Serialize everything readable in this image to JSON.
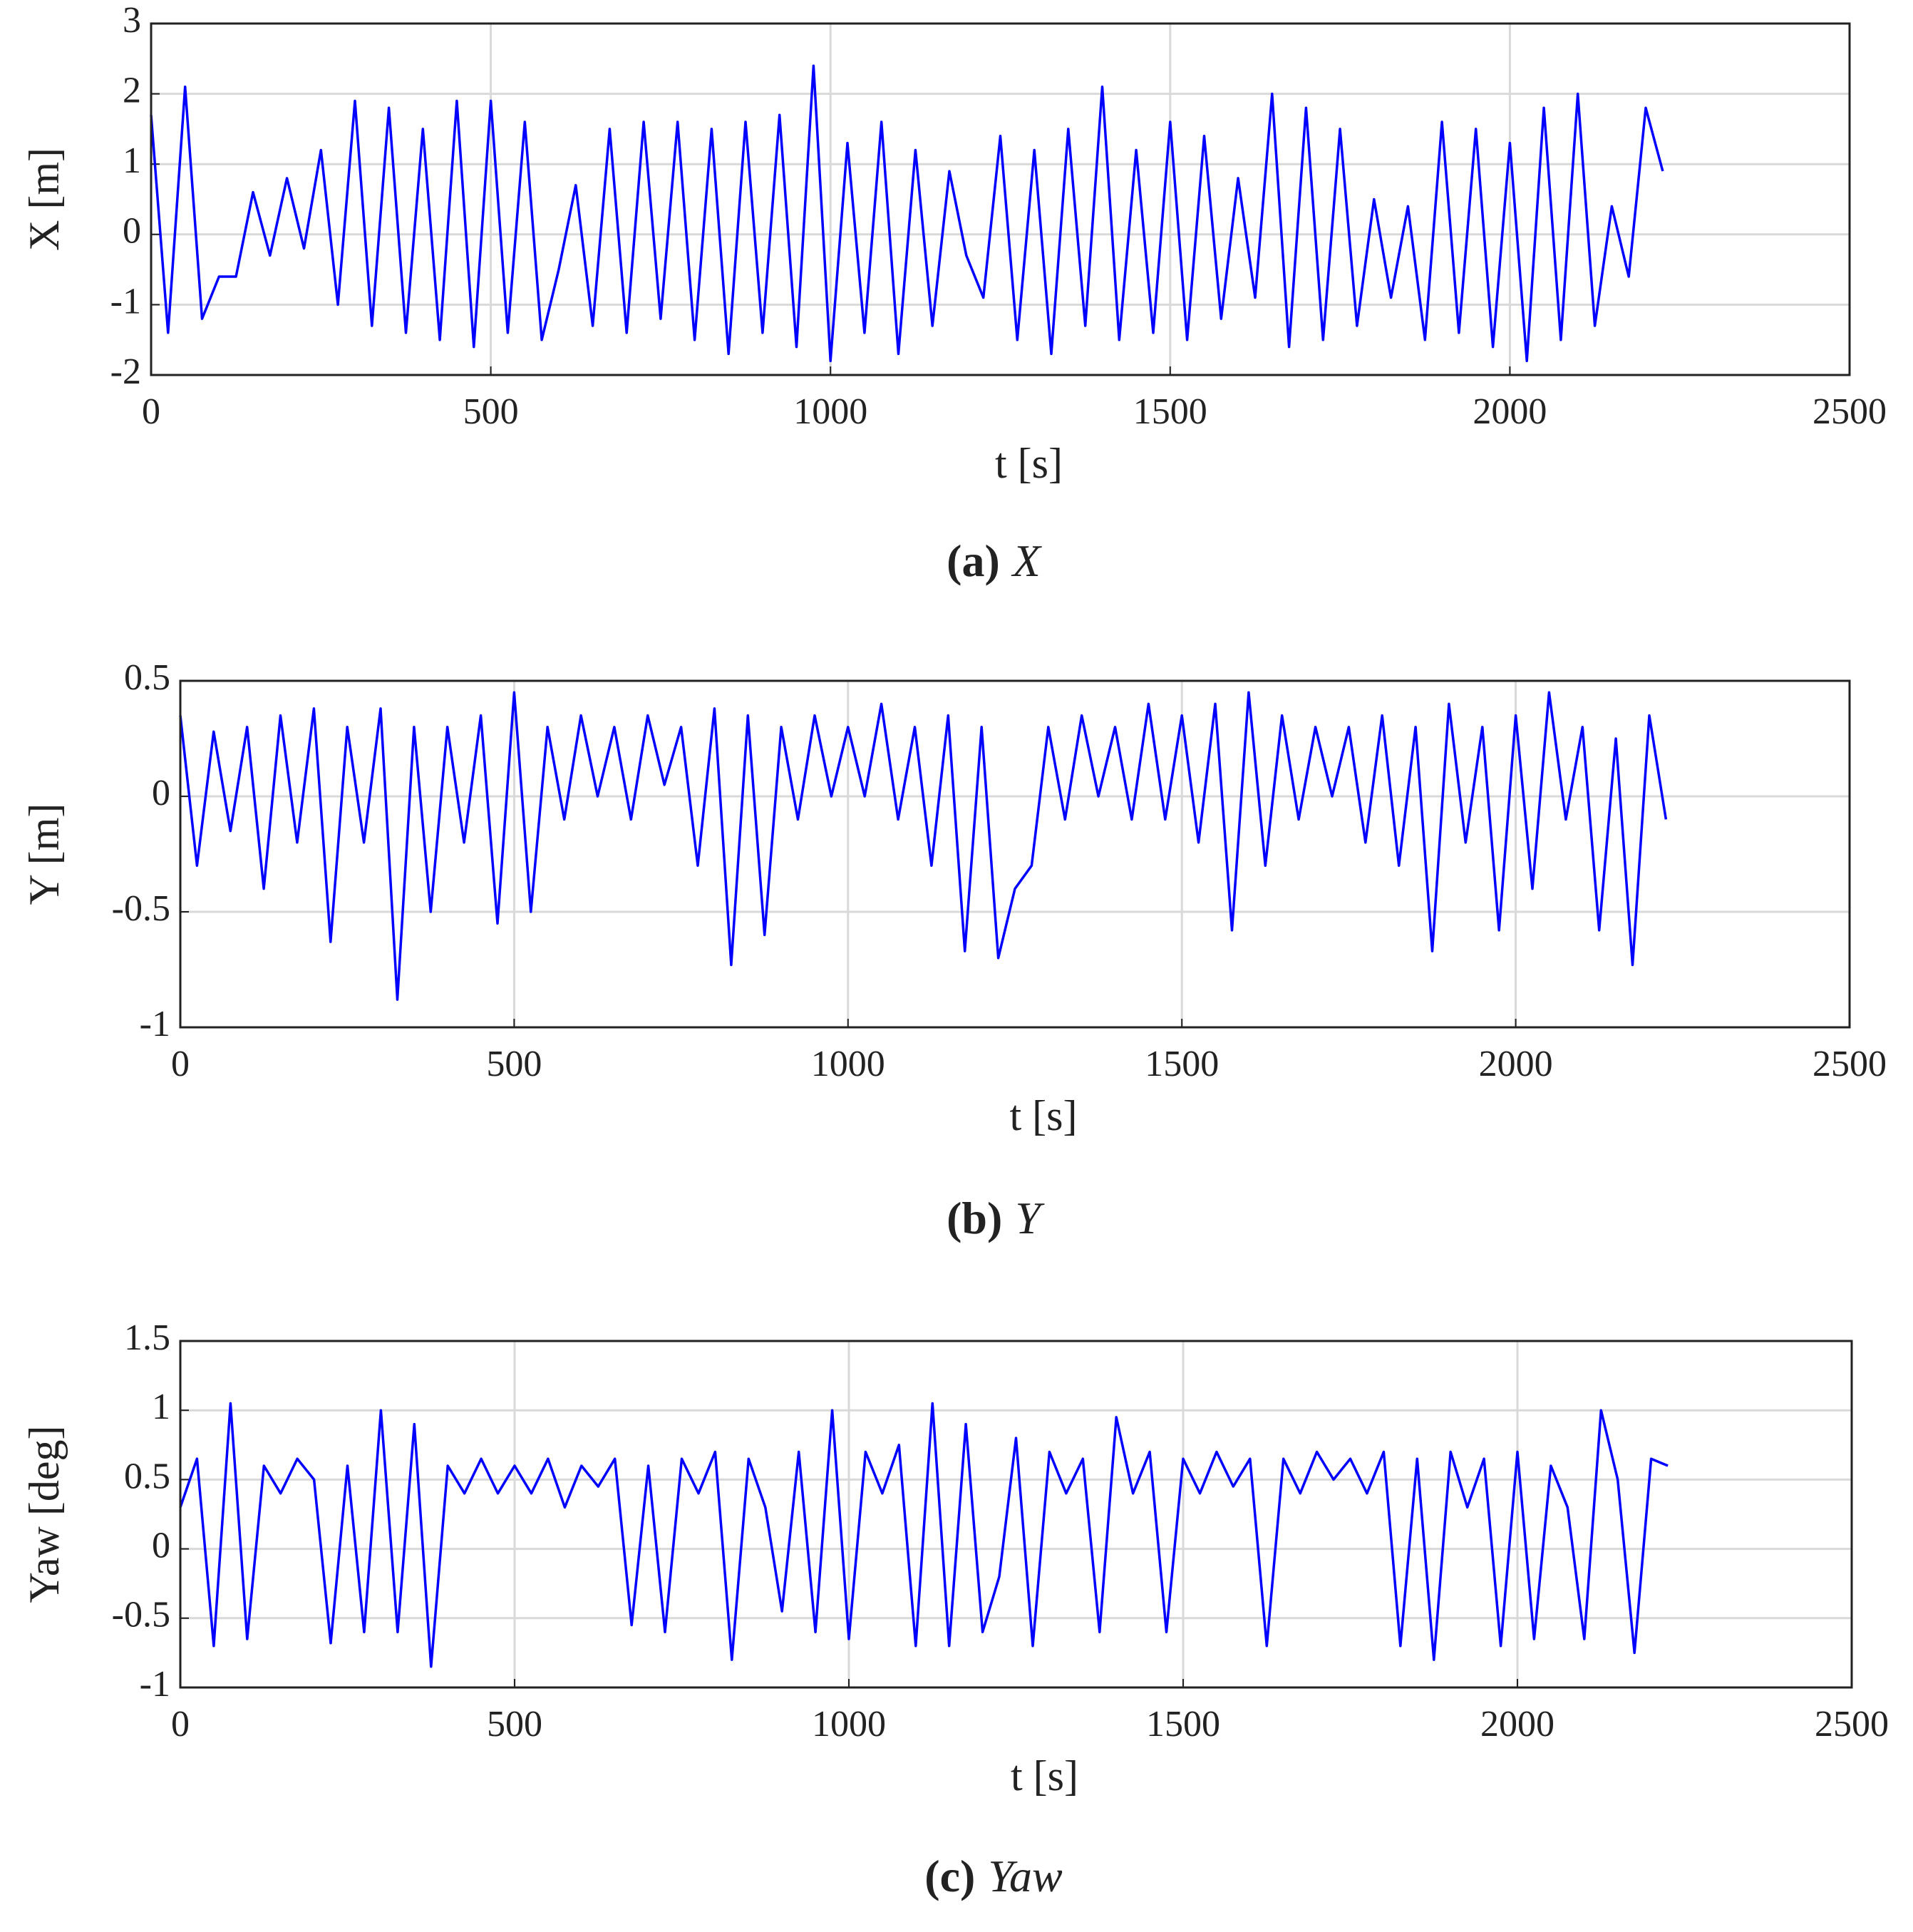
{
  "chart_data": [
    {
      "type": "line",
      "xlabel": "t [s]",
      "ylabel": "X [m]",
      "caption_label": "(a)",
      "caption_text": "X",
      "x": [
        0,
        25,
        50,
        75,
        100,
        125,
        150,
        175,
        200,
        225,
        250,
        275,
        300,
        325,
        350,
        375,
        400,
        425,
        450,
        475,
        500,
        525,
        550,
        575,
        600,
        625,
        650,
        675,
        700,
        725,
        750,
        775,
        800,
        825,
        850,
        875,
        900,
        925,
        950,
        975,
        1000,
        1025,
        1050,
        1075,
        1100,
        1125,
        1150,
        1175,
        1200,
        1225,
        1250,
        1275,
        1300,
        1325,
        1350,
        1375,
        1400,
        1425,
        1450,
        1475,
        1500,
        1525,
        1550,
        1575,
        1600,
        1625,
        1650,
        1675,
        1700,
        1725,
        1750,
        1775,
        1800,
        1825,
        1850,
        1875,
        1900,
        1925,
        1950,
        1975,
        2000,
        2025,
        2050,
        2075,
        2100,
        2125,
        2150,
        2175,
        2200,
        2225
      ],
      "series": [
        {
          "color": "#0000ff",
          "values": [
            1.7,
            -1.4,
            2.1,
            -1.2,
            -0.6,
            -0.6,
            0.6,
            -0.3,
            0.8,
            -0.2,
            1.2,
            -1.0,
            1.9,
            -1.3,
            1.8,
            -1.4,
            1.5,
            -1.5,
            1.9,
            -1.6,
            1.9,
            -1.4,
            1.6,
            -1.5,
            -0.5,
            0.7,
            -1.3,
            1.5,
            -1.4,
            1.6,
            -1.2,
            1.6,
            -1.5,
            1.5,
            -1.7,
            1.6,
            -1.4,
            1.7,
            -1.6,
            2.4,
            -1.8,
            1.3,
            -1.4,
            1.6,
            -1.7,
            1.2,
            -1.3,
            0.9,
            -0.3,
            -0.9,
            1.4,
            -1.5,
            1.2,
            -1.7,
            1.5,
            -1.3,
            2.1,
            -1.5,
            1.2,
            -1.4,
            1.6,
            -1.5,
            1.4,
            -1.2,
            0.8,
            -0.9,
            2.0,
            -1.6,
            1.8,
            -1.5,
            1.5,
            -1.3,
            0.5,
            -0.9,
            0.4,
            -1.5,
            1.6,
            -1.4,
            1.5,
            -1.6,
            1.3,
            -1.8,
            1.8,
            -1.5,
            2.0,
            -1.3,
            0.4,
            -0.6,
            1.8,
            0.9
          ]
        }
      ],
      "xlim": [
        0,
        2500
      ],
      "xticks": [
        0,
        500,
        1000,
        1500,
        2000,
        2500
      ],
      "ylim": [
        -2,
        3
      ],
      "yticks": [
        -2,
        -1,
        0,
        1,
        2,
        3
      ],
      "grid": true
    },
    {
      "type": "line",
      "xlabel": "t [s]",
      "ylabel": "Y [m]",
      "caption_label": "(b)",
      "caption_text": "Y",
      "x": [
        0,
        25,
        50,
        75,
        100,
        125,
        150,
        175,
        200,
        225,
        250,
        275,
        300,
        325,
        350,
        375,
        400,
        425,
        450,
        475,
        500,
        525,
        550,
        575,
        600,
        625,
        650,
        675,
        700,
        725,
        750,
        775,
        800,
        825,
        850,
        875,
        900,
        925,
        950,
        975,
        1000,
        1025,
        1050,
        1075,
        1100,
        1125,
        1150,
        1175,
        1200,
        1225,
        1250,
        1275,
        1300,
        1325,
        1350,
        1375,
        1400,
        1425,
        1450,
        1475,
        1500,
        1525,
        1550,
        1575,
        1600,
        1625,
        1650,
        1675,
        1700,
        1725,
        1750,
        1775,
        1800,
        1825,
        1850,
        1875,
        1900,
        1925,
        1950,
        1975,
        2000,
        2025,
        2050,
        2075,
        2100,
        2125,
        2150,
        2175,
        2200,
        2225
      ],
      "series": [
        {
          "color": "#0000ff",
          "values": [
            0.35,
            -0.3,
            0.28,
            -0.15,
            0.3,
            -0.4,
            0.35,
            -0.2,
            0.38,
            -0.63,
            0.3,
            -0.2,
            0.38,
            -0.88,
            0.3,
            -0.5,
            0.3,
            -0.2,
            0.35,
            -0.55,
            0.45,
            -0.5,
            0.3,
            -0.1,
            0.35,
            0.0,
            0.3,
            -0.1,
            0.35,
            0.05,
            0.3,
            -0.3,
            0.38,
            -0.73,
            0.35,
            -0.6,
            0.3,
            -0.1,
            0.35,
            0.0,
            0.3,
            0.0,
            0.4,
            -0.1,
            0.3,
            -0.3,
            0.35,
            -0.67,
            0.3,
            -0.7,
            -0.4,
            -0.3,
            0.3,
            -0.1,
            0.35,
            0.0,
            0.3,
            -0.1,
            0.4,
            -0.1,
            0.35,
            -0.2,
            0.4,
            -0.58,
            0.45,
            -0.3,
            0.35,
            -0.1,
            0.3,
            0.0,
            0.3,
            -0.2,
            0.35,
            -0.3,
            0.3,
            -0.67,
            0.4,
            -0.2,
            0.3,
            -0.58,
            0.35,
            -0.4,
            0.45,
            -0.1,
            0.3,
            -0.58,
            0.25,
            -0.73,
            0.35,
            -0.1
          ]
        }
      ],
      "xlim": [
        0,
        2500
      ],
      "xticks": [
        0,
        500,
        1000,
        1500,
        2000,
        2500
      ],
      "ylim": [
        -1,
        0.5
      ],
      "yticks": [
        -1,
        -0.5,
        0,
        0.5
      ],
      "grid": true
    },
    {
      "type": "line",
      "xlabel": "t [s]",
      "ylabel": "Yaw [deg]",
      "caption_label": "(c)",
      "caption_text": "Yaw",
      "x": [
        0,
        25,
        50,
        75,
        100,
        125,
        150,
        175,
        200,
        225,
        250,
        275,
        300,
        325,
        350,
        375,
        400,
        425,
        450,
        475,
        500,
        525,
        550,
        575,
        600,
        625,
        650,
        675,
        700,
        725,
        750,
        775,
        800,
        825,
        850,
        875,
        900,
        925,
        950,
        975,
        1000,
        1025,
        1050,
        1075,
        1100,
        1125,
        1150,
        1175,
        1200,
        1225,
        1250,
        1275,
        1300,
        1325,
        1350,
        1375,
        1400,
        1425,
        1450,
        1475,
        1500,
        1525,
        1550,
        1575,
        1600,
        1625,
        1650,
        1675,
        1700,
        1725,
        1750,
        1775,
        1800,
        1825,
        1850,
        1875,
        1900,
        1925,
        1950,
        1975,
        2000,
        2025,
        2050,
        2075,
        2100,
        2125,
        2150,
        2175,
        2200,
        2225
      ],
      "series": [
        {
          "color": "#0000ff",
          "values": [
            0.3,
            0.65,
            -0.7,
            1.05,
            -0.65,
            0.6,
            0.4,
            0.65,
            0.5,
            -0.68,
            0.6,
            -0.6,
            1.0,
            -0.6,
            0.9,
            -0.85,
            0.6,
            0.4,
            0.65,
            0.4,
            0.6,
            0.4,
            0.65,
            0.3,
            0.6,
            0.45,
            0.65,
            -0.55,
            0.6,
            -0.6,
            0.65,
            0.4,
            0.7,
            -0.8,
            0.65,
            0.3,
            -0.45,
            0.7,
            -0.6,
            1.0,
            -0.65,
            0.7,
            0.4,
            0.75,
            -0.7,
            1.05,
            -0.7,
            0.9,
            -0.6,
            -0.2,
            0.8,
            -0.7,
            0.7,
            0.4,
            0.65,
            -0.6,
            0.95,
            0.4,
            0.7,
            -0.6,
            0.65,
            0.4,
            0.7,
            0.45,
            0.65,
            -0.7,
            0.65,
            0.4,
            0.7,
            0.5,
            0.65,
            0.4,
            0.7,
            -0.7,
            0.65,
            -0.8,
            0.7,
            0.3,
            0.65,
            -0.7,
            0.7,
            -0.65,
            0.6,
            0.3,
            -0.65,
            1.0,
            0.5,
            -0.75,
            0.65,
            0.6
          ]
        }
      ],
      "xlim": [
        0,
        2500
      ],
      "xticks": [
        0,
        500,
        1000,
        1500,
        2000,
        2500
      ],
      "ylim": [
        -1,
        1.5
      ],
      "yticks": [
        -1,
        -0.5,
        0,
        0.5,
        1,
        1.5
      ],
      "grid": true
    }
  ]
}
